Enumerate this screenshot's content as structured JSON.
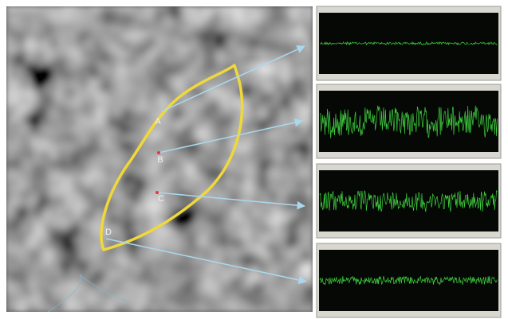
{
  "points": [
    {
      "label": "A"
    },
    {
      "label": "B"
    },
    {
      "label": "C"
    },
    {
      "label": "D"
    }
  ]
}
